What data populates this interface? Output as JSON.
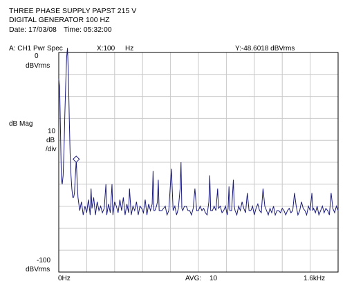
{
  "header": {
    "title": "THREE PHASE SUPPLY PAPST 215 V",
    "subtitle": "DIGITAL GENERATOR 100 HZ",
    "date_label": "Date: 17/03/08",
    "time_label": "Time: 05:32:00"
  },
  "trace_bar": {
    "trace": "A:  CH1 Pwr Spec",
    "x_readout": "X:100",
    "x_unit": "Hz",
    "y_readout": "Y:-48.6018 dBVrms"
  },
  "y_axis": {
    "top_value": "0",
    "top_unit": "dBVrms",
    "name": "dB Mag",
    "scale_value": "10",
    "scale_unit": "dB",
    "scale_div": "/div",
    "bottom_value": "-100",
    "bottom_unit": "dBVrms"
  },
  "x_axis": {
    "start_label": "0Hz",
    "avg_label": "AVG:",
    "avg_value": "10",
    "end_label": "1.6kHz"
  },
  "colors": {
    "trace": "#1a1a7a",
    "grid": "#c8c8c8",
    "frame": "#000000",
    "marker": "#1a1a7a"
  },
  "chart_data": {
    "type": "line",
    "title": "THREE PHASE SUPPLY PAPST 215 V",
    "xlabel": "",
    "ylabel": "dB Mag",
    "x_unit": "Hz",
    "y_unit": "dBVrms",
    "xlim": [
      0,
      1600
    ],
    "ylim": [
      -100,
      0
    ],
    "grid": true,
    "marker": {
      "x": 100,
      "y": -48.6018
    },
    "series": [
      {
        "values": [
          [
            0,
            -12
          ],
          [
            5,
            -16
          ],
          [
            10,
            -36
          ],
          [
            15,
            -58
          ],
          [
            20,
            -60
          ],
          [
            25,
            -56
          ],
          [
            30,
            -44
          ],
          [
            35,
            -28
          ],
          [
            40,
            -14
          ],
          [
            45,
            -2
          ],
          [
            50,
            2
          ],
          [
            55,
            -10
          ],
          [
            60,
            -30
          ],
          [
            65,
            -46
          ],
          [
            70,
            -56
          ],
          [
            75,
            -62
          ],
          [
            80,
            -66
          ],
          [
            85,
            -66
          ],
          [
            90,
            -64
          ],
          [
            95,
            -56
          ],
          [
            100,
            -49
          ],
          [
            105,
            -58
          ],
          [
            110,
            -66
          ],
          [
            120,
            -72
          ],
          [
            130,
            -68
          ],
          [
            140,
            -74
          ],
          [
            150,
            -70
          ],
          [
            160,
            -73
          ],
          [
            170,
            -67
          ],
          [
            180,
            -74
          ],
          [
            185,
            -62
          ],
          [
            190,
            -71
          ],
          [
            200,
            -66
          ],
          [
            210,
            -74
          ],
          [
            220,
            -68
          ],
          [
            230,
            -72
          ],
          [
            240,
            -70
          ],
          [
            250,
            -73
          ],
          [
            260,
            -71
          ],
          [
            270,
            -60
          ],
          [
            275,
            -74
          ],
          [
            285,
            -69
          ],
          [
            295,
            -73
          ],
          [
            305,
            -60
          ],
          [
            310,
            -74
          ],
          [
            320,
            -68
          ],
          [
            330,
            -70
          ],
          [
            340,
            -73
          ],
          [
            350,
            -67
          ],
          [
            360,
            -72
          ],
          [
            370,
            -66
          ],
          [
            380,
            -74
          ],
          [
            390,
            -69
          ],
          [
            400,
            -73
          ],
          [
            405,
            -62
          ],
          [
            415,
            -74
          ],
          [
            425,
            -70
          ],
          [
            435,
            -72
          ],
          [
            445,
            -68
          ],
          [
            455,
            -74
          ],
          [
            465,
            -70
          ],
          [
            475,
            -71
          ],
          [
            485,
            -73
          ],
          [
            495,
            -67
          ],
          [
            505,
            -74
          ],
          [
            515,
            -69
          ],
          [
            525,
            -72
          ],
          [
            535,
            -69
          ],
          [
            540,
            -54
          ],
          [
            545,
            -72
          ],
          [
            550,
            -72
          ],
          [
            560,
            -70
          ],
          [
            565,
            -68
          ],
          [
            570,
            -58
          ],
          [
            575,
            -72
          ],
          [
            590,
            -72
          ],
          [
            610,
            -70
          ],
          [
            620,
            -74
          ],
          [
            630,
            -72
          ],
          [
            645,
            -53
          ],
          [
            655,
            -72
          ],
          [
            665,
            -70
          ],
          [
            675,
            -74
          ],
          [
            685,
            -71
          ],
          [
            695,
            -62
          ],
          [
            700,
            -50
          ],
          [
            705,
            -71
          ],
          [
            710,
            -72
          ],
          [
            720,
            -70
          ],
          [
            730,
            -70
          ],
          [
            740,
            -72
          ],
          [
            750,
            -72
          ],
          [
            760,
            -74
          ],
          [
            770,
            -71
          ],
          [
            780,
            -62
          ],
          [
            790,
            -72
          ],
          [
            800,
            -72
          ],
          [
            810,
            -70
          ],
          [
            820,
            -72
          ],
          [
            830,
            -71
          ],
          [
            840,
            -73
          ],
          [
            850,
            -74
          ],
          [
            860,
            -68
          ],
          [
            865,
            -56
          ],
          [
            870,
            -72
          ],
          [
            880,
            -72
          ],
          [
            890,
            -70
          ],
          [
            900,
            -72
          ],
          [
            910,
            -62
          ],
          [
            915,
            -71
          ],
          [
            925,
            -70
          ],
          [
            935,
            -73
          ],
          [
            945,
            -72
          ],
          [
            955,
            -70
          ],
          [
            965,
            -74
          ],
          [
            970,
            -71
          ],
          [
            975,
            -61
          ],
          [
            980,
            -72
          ],
          [
            990,
            -72
          ],
          [
            1000,
            -58
          ],
          [
            1005,
            -70
          ],
          [
            1010,
            -72
          ],
          [
            1020,
            -74
          ],
          [
            1030,
            -70
          ],
          [
            1040,
            -72
          ],
          [
            1050,
            -68
          ],
          [
            1060,
            -71
          ],
          [
            1070,
            -73
          ],
          [
            1080,
            -64
          ],
          [
            1090,
            -72
          ],
          [
            1100,
            -72
          ],
          [
            1110,
            -70
          ],
          [
            1120,
            -74
          ],
          [
            1130,
            -71
          ],
          [
            1140,
            -69
          ],
          [
            1150,
            -72
          ],
          [
            1160,
            -73
          ],
          [
            1170,
            -62
          ],
          [
            1180,
            -70
          ],
          [
            1190,
            -72
          ],
          [
            1200,
            -74
          ],
          [
            1210,
            -71
          ],
          [
            1220,
            -73
          ],
          [
            1230,
            -70
          ],
          [
            1240,
            -74
          ],
          [
            1250,
            -72
          ],
          [
            1260,
            -72
          ],
          [
            1270,
            -73
          ],
          [
            1280,
            -71
          ],
          [
            1290,
            -72
          ],
          [
            1300,
            -74
          ],
          [
            1310,
            -72
          ],
          [
            1320,
            -71
          ],
          [
            1330,
            -73
          ],
          [
            1340,
            -72
          ],
          [
            1350,
            -64
          ],
          [
            1360,
            -70
          ],
          [
            1370,
            -74
          ],
          [
            1380,
            -72
          ],
          [
            1390,
            -68
          ],
          [
            1400,
            -71
          ],
          [
            1410,
            -72
          ],
          [
            1420,
            -74
          ],
          [
            1430,
            -70
          ],
          [
            1440,
            -72
          ],
          [
            1450,
            -64
          ],
          [
            1455,
            -72
          ],
          [
            1460,
            -71
          ],
          [
            1470,
            -73
          ],
          [
            1480,
            -70
          ],
          [
            1490,
            -74
          ],
          [
            1500,
            -72
          ],
          [
            1510,
            -70
          ],
          [
            1520,
            -73
          ],
          [
            1530,
            -71
          ],
          [
            1540,
            -72
          ],
          [
            1550,
            -74
          ],
          [
            1560,
            -64
          ],
          [
            1570,
            -71
          ],
          [
            1580,
            -73
          ],
          [
            1590,
            -70
          ],
          [
            1600,
            -72
          ]
        ]
      }
    ]
  }
}
